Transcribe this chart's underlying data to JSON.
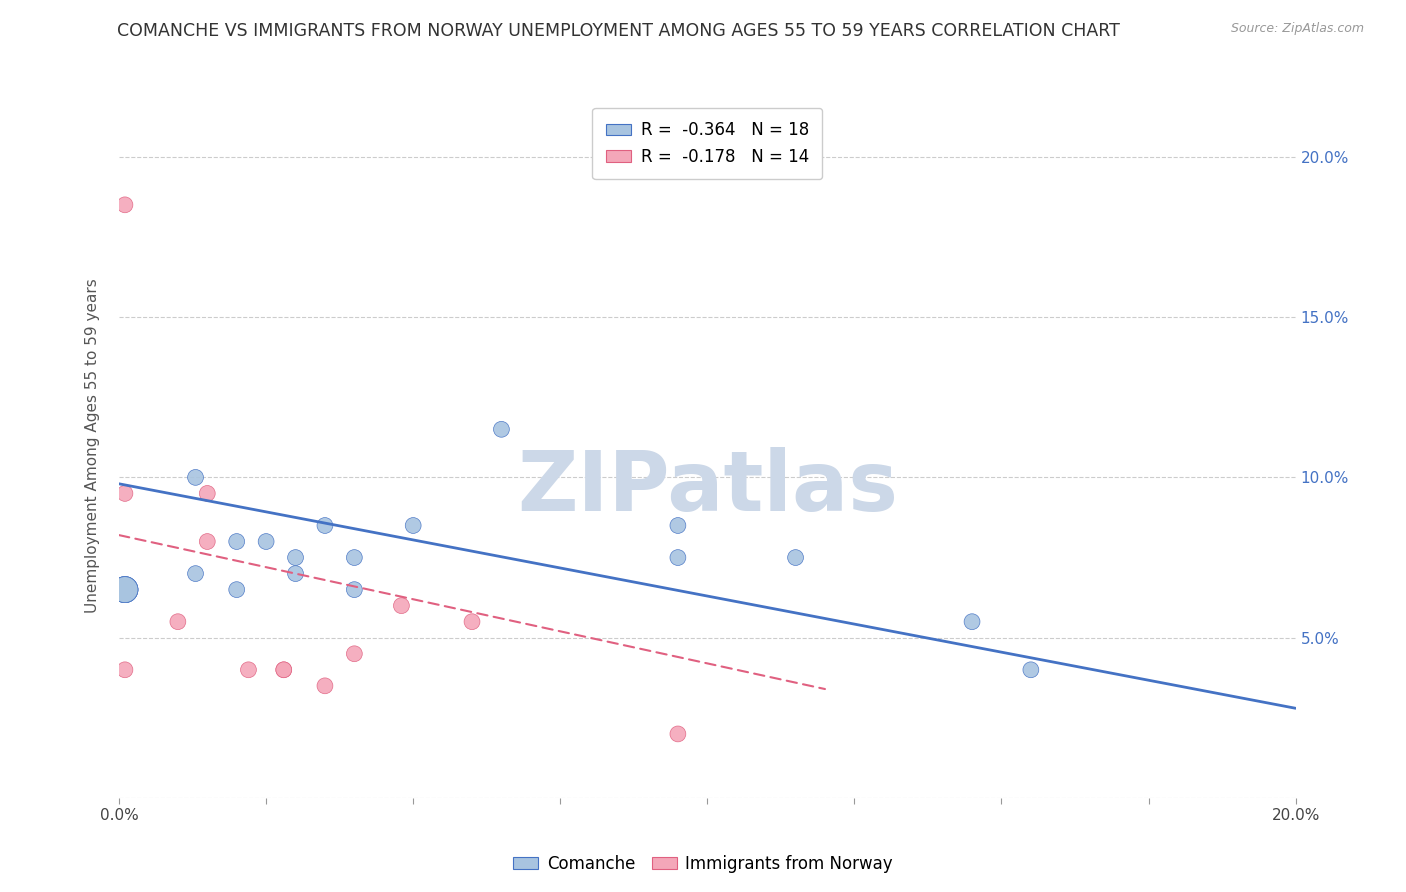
{
  "title": "COMANCHE VS IMMIGRANTS FROM NORWAY UNEMPLOYMENT AMONG AGES 55 TO 59 YEARS CORRELATION CHART",
  "source": "Source: ZipAtlas.com",
  "ylabel": "Unemployment Among Ages 55 to 59 years",
  "xlim": [
    0.0,
    0.2
  ],
  "ylim": [
    0.0,
    0.22
  ],
  "x_ticks": [
    0.0,
    0.025,
    0.05,
    0.075,
    0.1,
    0.125,
    0.15,
    0.175,
    0.2
  ],
  "x_tick_labels_show": [
    "0.0%",
    "",
    "",
    "",
    "",
    "",
    "",
    "",
    "20.0%"
  ],
  "y_ticks_right": [
    0.05,
    0.1,
    0.15,
    0.2
  ],
  "y_tick_labels_right": [
    "5.0%",
    "10.0%",
    "15.0%",
    "20.0%"
  ],
  "comanche_color": "#a8c4e0",
  "norway_color": "#f4a7b9",
  "comanche_edge_color": "#4472c4",
  "norway_edge_color": "#e06080",
  "comanche_line_color": "#4472c4",
  "norway_line_color": "#e06080",
  "background_color": "#ffffff",
  "grid_color": "#cccccc",
  "watermark_text": "ZIPatlas",
  "watermark_color": "#ccd8e8",
  "legend_label_1": "R =  -0.364   N = 18",
  "legend_label_2": "R =  -0.178   N = 14",
  "bottom_legend_1": "Comanche",
  "bottom_legend_2": "Immigrants from Norway",
  "comanche_x": [
    0.001,
    0.001,
    0.001,
    0.001,
    0.013,
    0.013,
    0.02,
    0.02,
    0.025,
    0.03,
    0.03,
    0.035,
    0.04,
    0.04,
    0.05,
    0.065,
    0.095,
    0.095,
    0.115,
    0.145,
    0.155
  ],
  "comanche_y": [
    0.065,
    0.065,
    0.065,
    0.065,
    0.07,
    0.1,
    0.065,
    0.08,
    0.08,
    0.07,
    0.075,
    0.085,
    0.075,
    0.065,
    0.085,
    0.115,
    0.075,
    0.085,
    0.075,
    0.055,
    0.04
  ],
  "comanche_sizes": [
    350,
    350,
    350,
    350,
    130,
    130,
    130,
    130,
    130,
    130,
    130,
    130,
    130,
    130,
    130,
    130,
    130,
    130,
    130,
    130,
    130
  ],
  "norway_x": [
    0.001,
    0.001,
    0.001,
    0.01,
    0.015,
    0.015,
    0.022,
    0.028,
    0.028,
    0.035,
    0.04,
    0.048,
    0.06,
    0.095
  ],
  "norway_y": [
    0.185,
    0.095,
    0.04,
    0.055,
    0.095,
    0.08,
    0.04,
    0.04,
    0.04,
    0.035,
    0.045,
    0.06,
    0.055,
    0.02
  ],
  "norway_sizes": [
    130,
    130,
    130,
    130,
    130,
    130,
    130,
    130,
    130,
    130,
    130,
    130,
    130,
    130
  ],
  "regression_comanche": {
    "x_start": 0.0,
    "y_start": 0.098,
    "x_end": 0.2,
    "y_end": 0.028
  },
  "regression_norway": {
    "x_start": 0.0,
    "y_start": 0.082,
    "x_end": 0.12,
    "y_end": 0.034
  }
}
